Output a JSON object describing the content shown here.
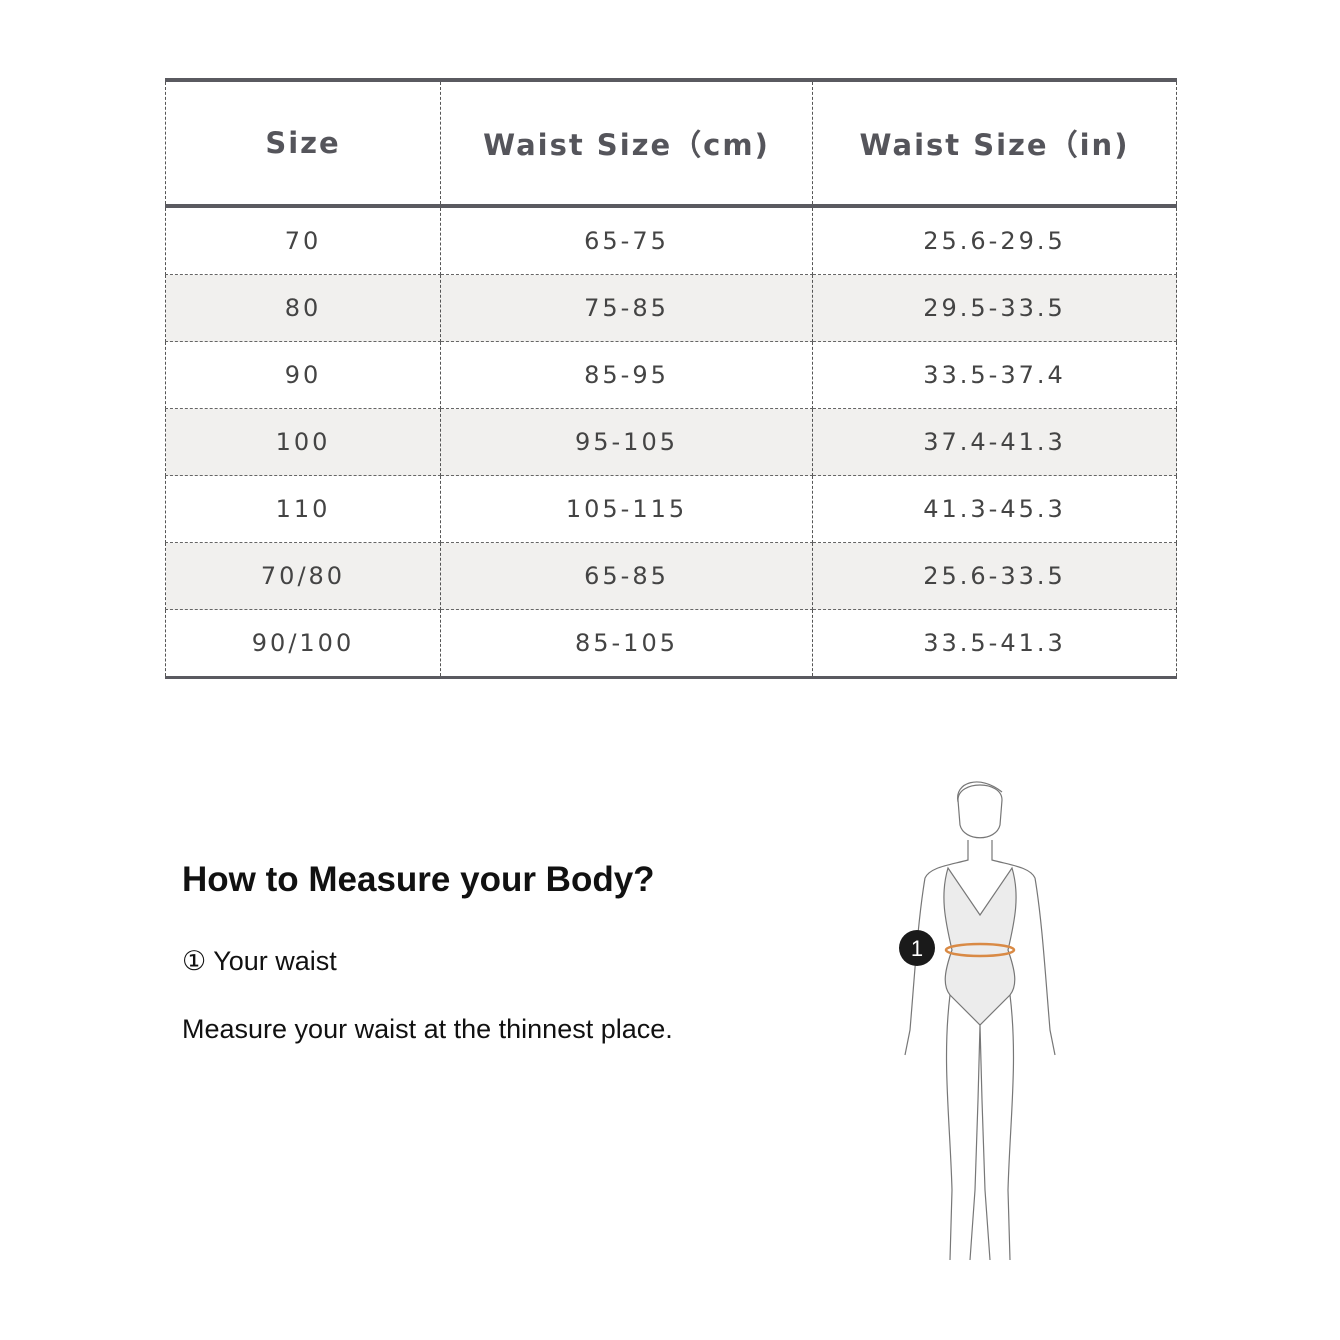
{
  "table": {
    "headers": [
      "Size",
      "Waist Size（cm)",
      "Waist Size（in)"
    ],
    "rows": [
      [
        "70",
        "65-75",
        "25.6-29.5"
      ],
      [
        "80",
        "75-85",
        "29.5-33.5"
      ],
      [
        "90",
        "85-95",
        "33.5-37.4"
      ],
      [
        "100",
        "95-105",
        "37.4-41.3"
      ],
      [
        "110",
        "105-115",
        "41.3-45.3"
      ],
      [
        "70/80",
        "65-85",
        "25.6-33.5"
      ],
      [
        "90/100",
        "85-105",
        "33.5-41.3"
      ]
    ]
  },
  "guide": {
    "title": "How to Measure your Body?",
    "step_marker": "①",
    "step_label": "Your waist",
    "description": "Measure your waist at the thinnest place.",
    "figure_marker": "1",
    "waist_line_color": "#d98a45",
    "marker_color": "#1a1a1a"
  }
}
